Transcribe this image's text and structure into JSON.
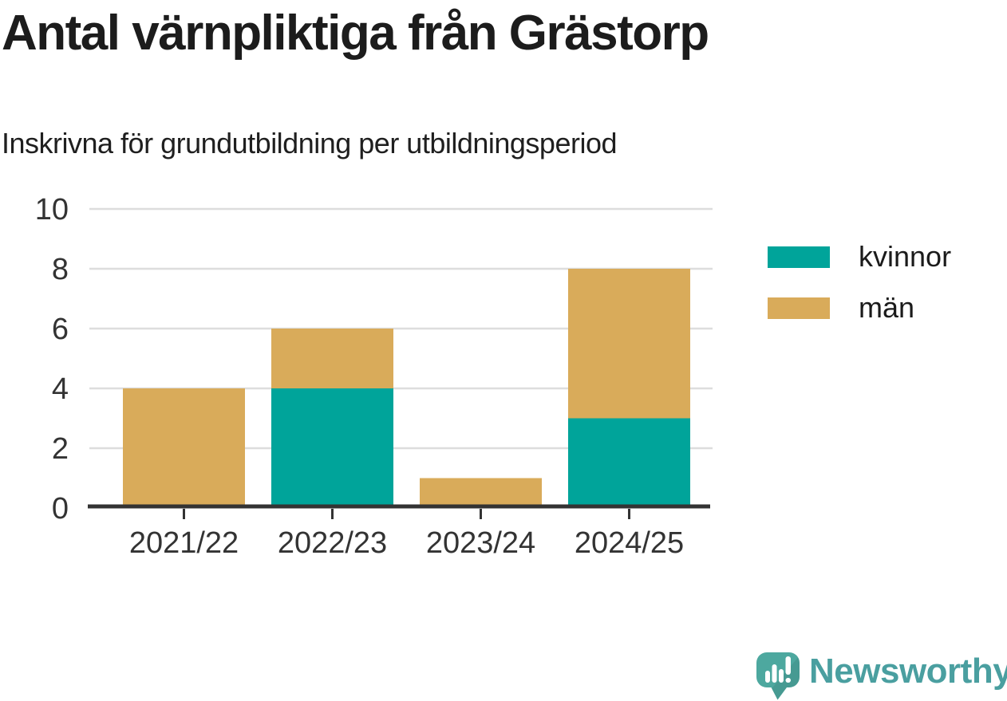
{
  "title": "Antal värnpliktiga från Grästorp",
  "subtitle": "Inskrivna för grundutbildning per utbildningsperiod",
  "colors": {
    "kvinnor": "#00a49a",
    "man": "#d9ab5a",
    "axis_line": "#333333",
    "tick_text": "#333333",
    "gridline": "#dddddd",
    "title_text": "#1c1c1c",
    "brand_teal": "#4a9fa0",
    "brand_mark_teal": "#4da89f"
  },
  "chart_data": {
    "type": "bar",
    "stacked": true,
    "title": "Antal värnpliktiga från Grästorp",
    "subtitle": "Inskrivna för grundutbildning per utbildningsperiod",
    "categories": [
      "2021/22",
      "2022/23",
      "2023/24",
      "2024/25"
    ],
    "series": [
      {
        "name": "kvinnor",
        "color": "#00a49a",
        "values": [
          0,
          4,
          0,
          3
        ]
      },
      {
        "name": "män",
        "color": "#d9ab5a",
        "values": [
          4,
          2,
          1,
          5
        ]
      }
    ],
    "totals": [
      4,
      6,
      1,
      8
    ],
    "xlabel": "",
    "ylabel": "",
    "ylim": [
      0,
      10
    ],
    "yticks": [
      0,
      2,
      4,
      6,
      8,
      10
    ],
    "grid": "horizontal",
    "legend_position": "right"
  },
  "legend": {
    "items": [
      {
        "label": "kvinnor",
        "color": "#00a49a"
      },
      {
        "label": "män",
        "color": "#d9ab5a"
      }
    ]
  },
  "footer": {
    "brand": "Newsworthy"
  }
}
